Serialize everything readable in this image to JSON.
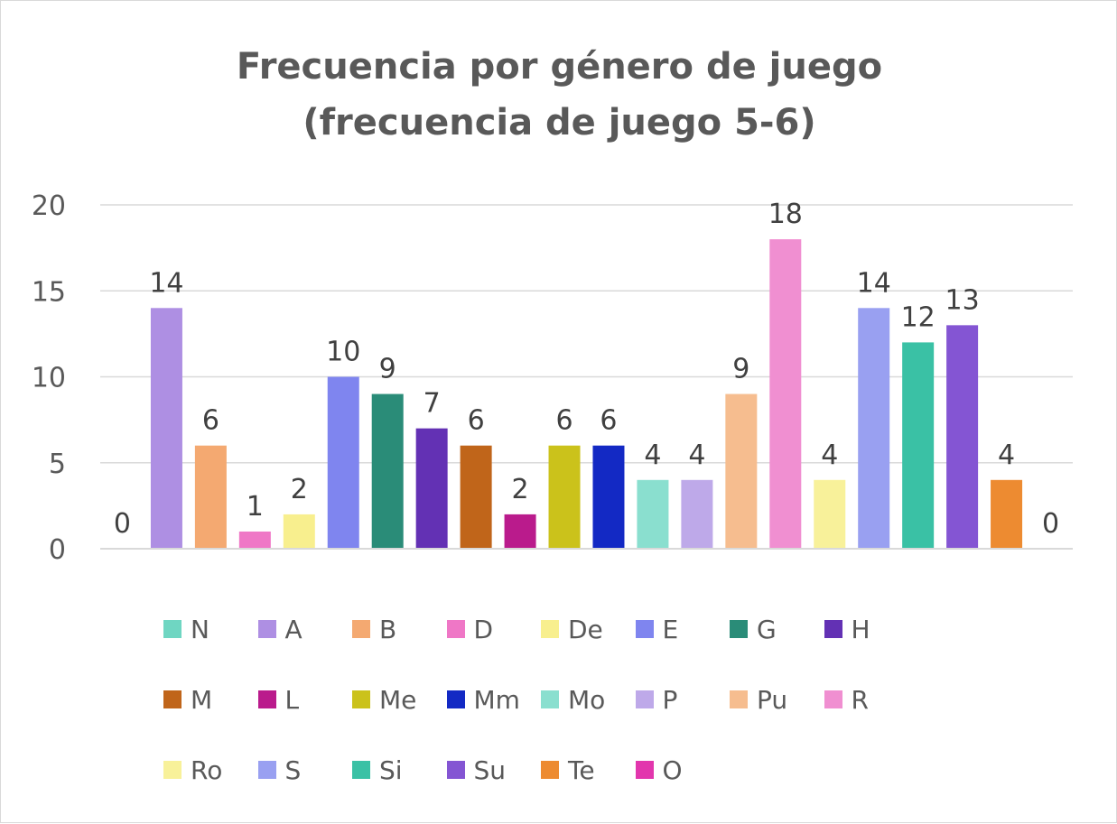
{
  "chart_data": {
    "type": "bar",
    "title": [
      "Frecuencia por género de juego",
      "(frecuencia de juego 5-6)"
    ],
    "xlabel": "",
    "ylabel": "",
    "ylim": [
      0,
      20
    ],
    "yticks": [
      0,
      5,
      10,
      15,
      20
    ],
    "grid": true,
    "legend_position": "bottom",
    "data_labels": true,
    "categories": [
      "N",
      "A",
      "B",
      "D",
      "De",
      "E",
      "G",
      "H",
      "M",
      "L",
      "Me",
      "Mm",
      "Mo",
      "P",
      "Pu",
      "R",
      "Ro",
      "S",
      "Si",
      "Su",
      "Te",
      "O"
    ],
    "values": [
      0,
      14,
      6,
      1,
      2,
      10,
      9,
      7,
      6,
      2,
      6,
      6,
      4,
      4,
      9,
      18,
      4,
      14,
      12,
      13,
      4,
      0
    ],
    "colors": [
      "#6fd6c2",
      "#ae8fe3",
      "#f4a971",
      "#ef77c6",
      "#f8ef8e",
      "#7f85ef",
      "#2a8c78",
      "#6331b4",
      "#c0651a",
      "#ba1b8c",
      "#cbc21b",
      "#1329c4",
      "#8adfcf",
      "#bea9e9",
      "#f6bd8f",
      "#f08fd1",
      "#f8f19a",
      "#99a0f1",
      "#3ac1a5",
      "#8455d3",
      "#ed8b31",
      "#e236ad"
    ],
    "series": [
      {
        "values": [
          0,
          14,
          6,
          1,
          2,
          10,
          9,
          7,
          6,
          2,
          6,
          6,
          4,
          4,
          9,
          18,
          4,
          14,
          12,
          13,
          4,
          0
        ]
      }
    ]
  }
}
